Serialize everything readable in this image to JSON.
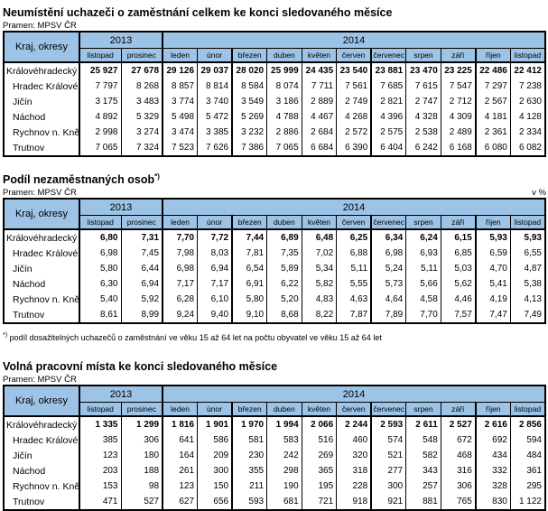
{
  "source_label": "Pramen: MPSV ČR",
  "colors": {
    "header_bg": "#9DC3E6",
    "border": "#000000",
    "text": "#000000"
  },
  "columns": {
    "row_header": "Kraj, okresy",
    "groups": [
      {
        "label": "2013",
        "span": 2
      },
      {
        "label": "2014",
        "span": 11
      }
    ],
    "months": [
      "listopad",
      "prosinec",
      "leden",
      "únor",
      "březen",
      "duben",
      "květen",
      "červen",
      "červenec",
      "srpen",
      "září",
      "říjen",
      "listopad"
    ]
  },
  "footnote": {
    "sup": "*)",
    "text": " podíl dosažitelných uchazečů o zaměstnání ve věku 15 až 64 let na počtu obyvatel ve věku 15 až 64 let"
  },
  "tables": [
    {
      "title": "Neumístění uchazeči o zaměstnání celkem ke konci sledovaného měsíce",
      "title_sup": "",
      "unit": "",
      "rows": [
        {
          "label": "Královéhradecký kr.",
          "bold": true,
          "is_district": false,
          "values": [
            "25 927",
            "27 678",
            "29 126",
            "29 037",
            "28 020",
            "25 999",
            "24 435",
            "23 540",
            "23 881",
            "23 470",
            "23 225",
            "22 486",
            "22 412"
          ]
        },
        {
          "label": "Hradec Králové",
          "bold": false,
          "is_district": true,
          "values": [
            "7 797",
            "8 268",
            "8 857",
            "8 814",
            "8 584",
            "8 074",
            "7 711",
            "7 561",
            "7 685",
            "7 615",
            "7 547",
            "7 297",
            "7 238"
          ]
        },
        {
          "label": "Jičín",
          "bold": false,
          "is_district": true,
          "values": [
            "3 175",
            "3 483",
            "3 774",
            "3 740",
            "3 549",
            "3 186",
            "2 889",
            "2 749",
            "2 821",
            "2 747",
            "2 712",
            "2 567",
            "2 630"
          ]
        },
        {
          "label": "Náchod",
          "bold": false,
          "is_district": true,
          "values": [
            "4 892",
            "5 329",
            "5 498",
            "5 472",
            "5 269",
            "4 788",
            "4 467",
            "4 268",
            "4 396",
            "4 328",
            "4 309",
            "4 181",
            "4 128"
          ]
        },
        {
          "label": "Rychnov n. Kněž.",
          "bold": false,
          "is_district": true,
          "values": [
            "2 998",
            "3 274",
            "3 474",
            "3 385",
            "3 232",
            "2 886",
            "2 684",
            "2 572",
            "2 575",
            "2 538",
            "2 489",
            "2 361",
            "2 334"
          ]
        },
        {
          "label": "Trutnov",
          "bold": false,
          "is_district": true,
          "values": [
            "7 065",
            "7 324",
            "7 523",
            "7 626",
            "7 386",
            "7 065",
            "6 684",
            "6 390",
            "6 404",
            "6 242",
            "6 168",
            "6 080",
            "6 082"
          ]
        }
      ]
    },
    {
      "title": "Podíl nezaměstnaných osob",
      "title_sup": "*)",
      "unit": "v %",
      "rows": [
        {
          "label": "Královéhradecký kr.",
          "bold": true,
          "is_district": false,
          "values": [
            "6,80",
            "7,31",
            "7,70",
            "7,72",
            "7,44",
            "6,89",
            "6,48",
            "6,25",
            "6,34",
            "6,24",
            "6,15",
            "5,93",
            "5,93"
          ]
        },
        {
          "label": "Hradec Králové",
          "bold": false,
          "is_district": true,
          "values": [
            "6,98",
            "7,45",
            "7,98",
            "8,03",
            "7,81",
            "7,35",
            "7,02",
            "6,88",
            "6,98",
            "6,93",
            "6,85",
            "6,59",
            "6,55"
          ]
        },
        {
          "label": "Jičín",
          "bold": false,
          "is_district": true,
          "values": [
            "5,80",
            "6,44",
            "6,98",
            "6,94",
            "6,54",
            "5,89",
            "5,34",
            "5,11",
            "5,24",
            "5,11",
            "5,03",
            "4,70",
            "4,87"
          ]
        },
        {
          "label": "Náchod",
          "bold": false,
          "is_district": true,
          "values": [
            "6,30",
            "6,94",
            "7,17",
            "7,17",
            "6,91",
            "6,22",
            "5,82",
            "5,55",
            "5,73",
            "5,66",
            "5,62",
            "5,41",
            "5,38"
          ]
        },
        {
          "label": "Rychnov n. Kněž.",
          "bold": false,
          "is_district": true,
          "values": [
            "5,40",
            "5,92",
            "6,28",
            "6,10",
            "5,80",
            "5,20",
            "4,83",
            "4,63",
            "4,64",
            "4,58",
            "4,46",
            "4,19",
            "4,13"
          ]
        },
        {
          "label": "Trutnov",
          "bold": false,
          "is_district": true,
          "values": [
            "8,61",
            "8,99",
            "9,24",
            "9,40",
            "9,10",
            "8,68",
            "8,22",
            "7,87",
            "7,89",
            "7,70",
            "7,57",
            "7,47",
            "7,49"
          ]
        }
      ]
    },
    {
      "title": "Volná pracovní místa ke konci sledovaného měsíce",
      "title_sup": "",
      "unit": "",
      "rows": [
        {
          "label": "Královéhradecký kr.",
          "bold": true,
          "is_district": false,
          "values": [
            "1 335",
            "1 299",
            "1 816",
            "1 901",
            "1 970",
            "1 994",
            "2 066",
            "2 244",
            "2 593",
            "2 611",
            "2 527",
            "2 616",
            "2 856"
          ]
        },
        {
          "label": "Hradec Králové",
          "bold": false,
          "is_district": true,
          "values": [
            "385",
            "306",
            "641",
            "586",
            "581",
            "583",
            "516",
            "460",
            "574",
            "548",
            "672",
            "692",
            "594"
          ]
        },
        {
          "label": "Jičín",
          "bold": false,
          "is_district": true,
          "values": [
            "123",
            "180",
            "164",
            "209",
            "230",
            "242",
            "269",
            "320",
            "521",
            "582",
            "468",
            "434",
            "484"
          ]
        },
        {
          "label": "Náchod",
          "bold": false,
          "is_district": true,
          "values": [
            "203",
            "188",
            "261",
            "300",
            "355",
            "298",
            "365",
            "318",
            "277",
            "343",
            "316",
            "332",
            "361"
          ]
        },
        {
          "label": "Rychnov n. Kněž.",
          "bold": false,
          "is_district": true,
          "values": [
            "153",
            "98",
            "123",
            "150",
            "211",
            "190",
            "195",
            "228",
            "300",
            "257",
            "306",
            "328",
            "295"
          ]
        },
        {
          "label": "Trutnov",
          "bold": false,
          "is_district": true,
          "values": [
            "471",
            "527",
            "627",
            "656",
            "593",
            "681",
            "721",
            "918",
            "921",
            "881",
            "765",
            "830",
            "1 122"
          ]
        }
      ]
    }
  ]
}
